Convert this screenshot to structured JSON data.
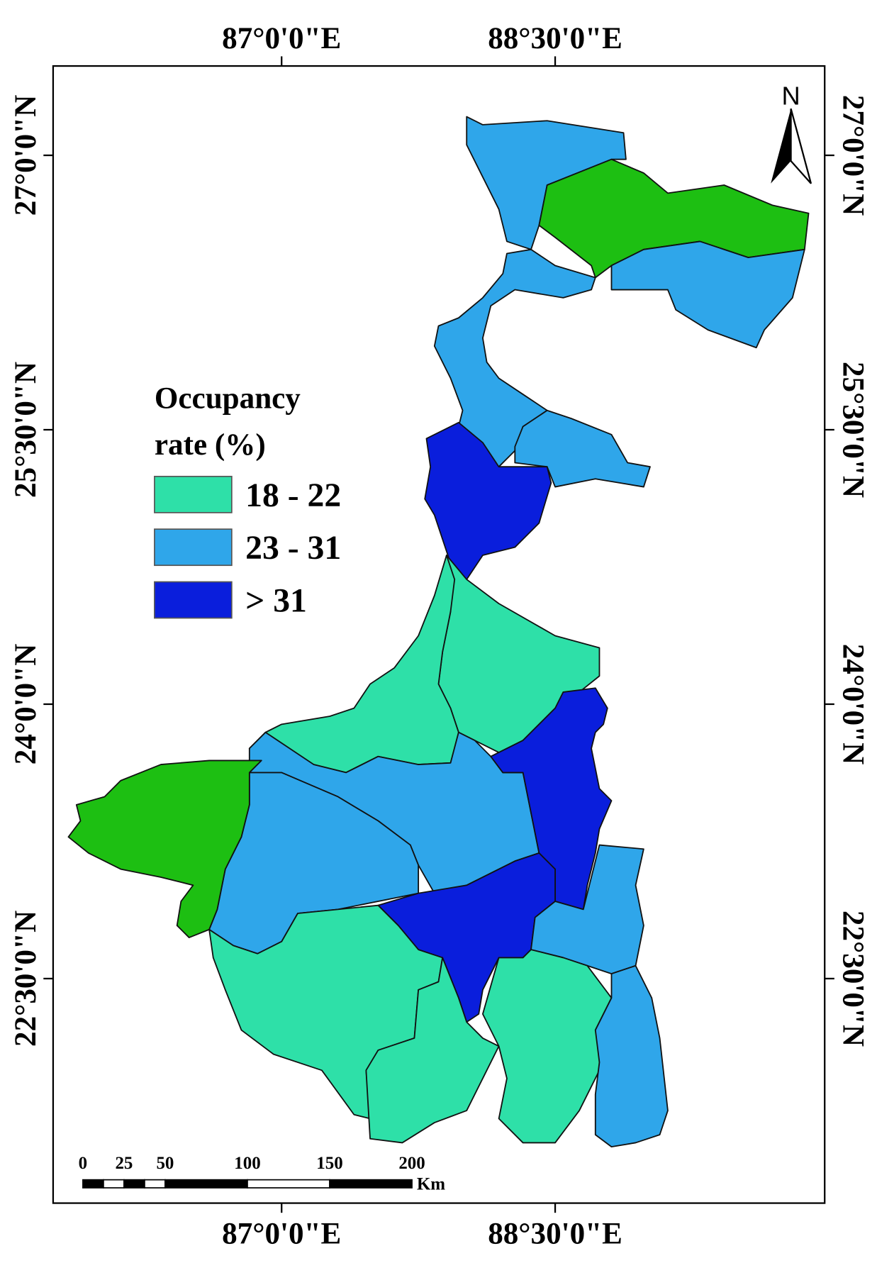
{
  "longitude_labels": [
    "87°0'0\"E",
    "88°30'0\"E"
  ],
  "latitude_labels": [
    "27°0'0\"N",
    "25°30'0\"N",
    "24°0'0\"N",
    "22°30'0\"N"
  ],
  "north_label": "N",
  "legend": {
    "title_lines": [
      "Occupancy",
      "rate (%)"
    ],
    "entries": [
      {
        "label": "18 - 22",
        "color": "#2ee0a8"
      },
      {
        "label": "23 - 31",
        "color": "#2fa6ea"
      },
      {
        "label": "> 31",
        "color": "#0a1edc"
      }
    ]
  },
  "scale_bar": {
    "labels": [
      0,
      25,
      50,
      100,
      150,
      200
    ],
    "unit": "Km"
  }
}
